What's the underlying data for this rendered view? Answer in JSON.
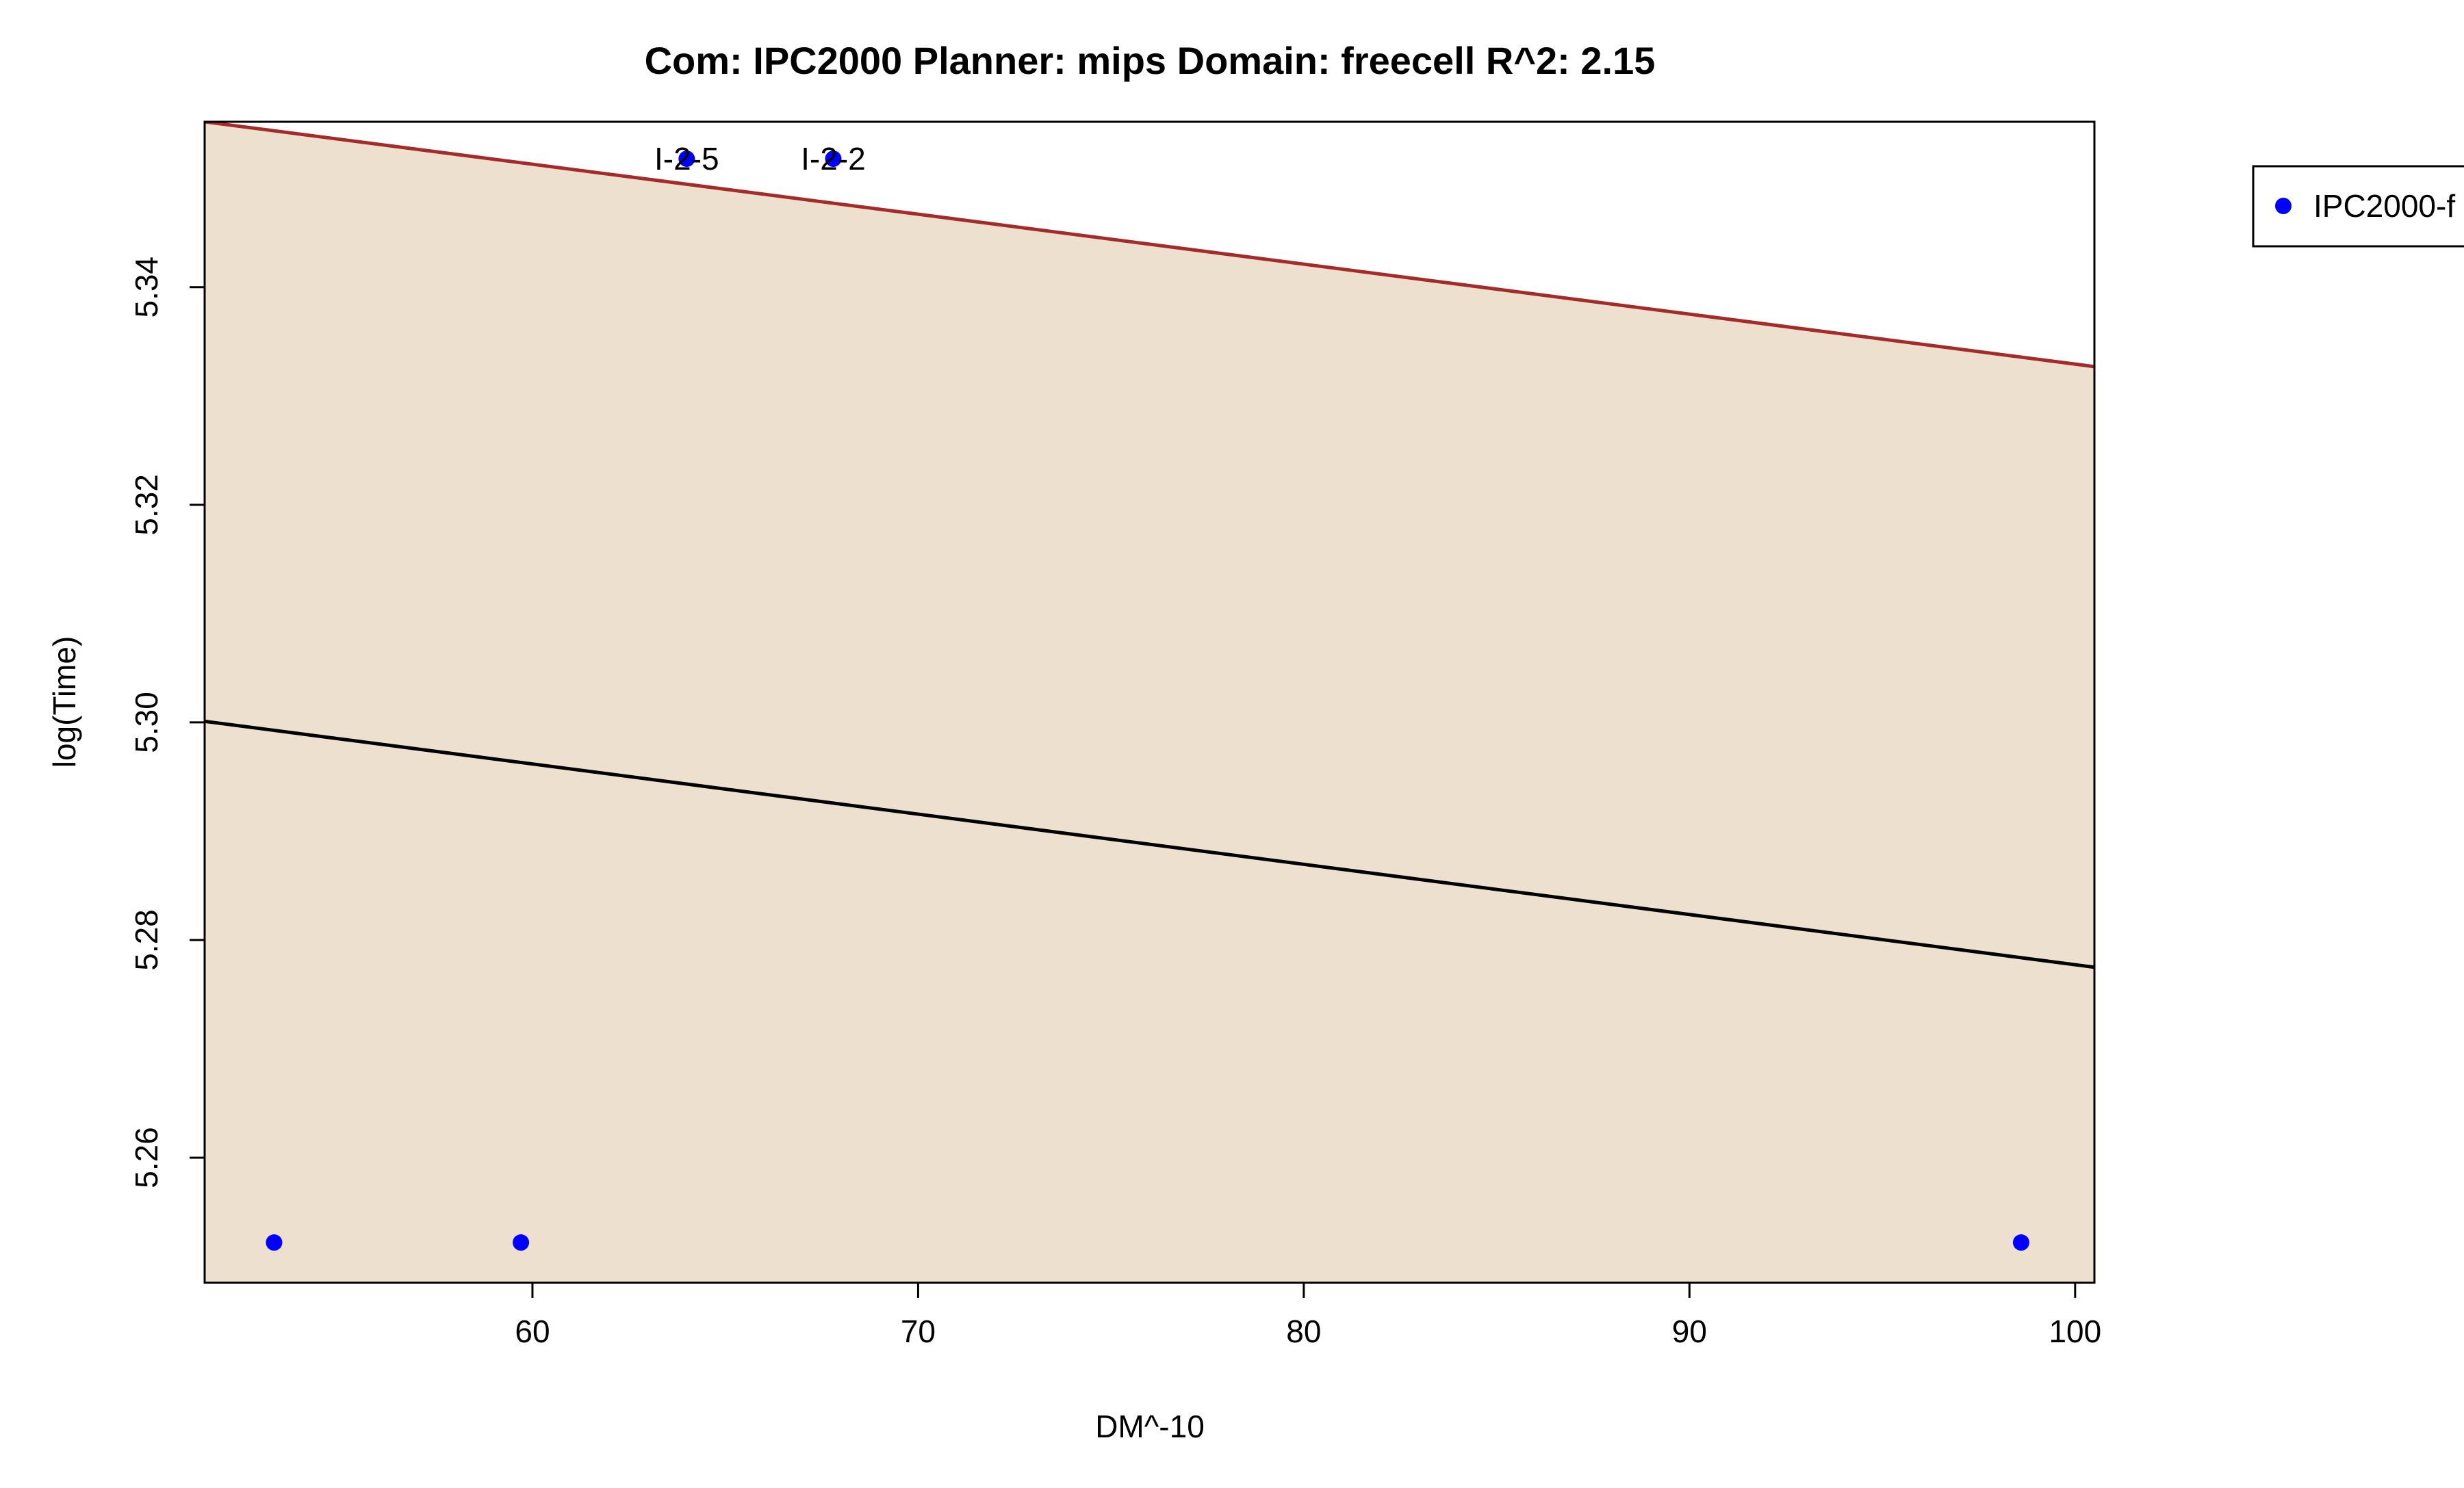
{
  "chart_data": {
    "type": "scatter",
    "title": "Com: IPC2000 Planner: mips Domain: freecell R^2: 2.15",
    "xlabel": "DM^-10",
    "ylabel": "log(Time)",
    "xlim": [
      51.5,
      100.5
    ],
    "ylim": [
      5.2485,
      5.3552
    ],
    "x_ticks": [
      60,
      70,
      80,
      90,
      100
    ],
    "x_tick_labels": [
      "60",
      "70",
      "80",
      "90",
      "100"
    ],
    "y_ticks": [
      5.26,
      5.28,
      5.3,
      5.32,
      5.34
    ],
    "y_tick_labels": [
      "5.26",
      "5.28",
      "5.30",
      "5.32",
      "5.34"
    ],
    "series": [
      {
        "name": "IPC2000-f",
        "color": "#0000ff",
        "points": [
          {
            "x": 53.3,
            "y": 5.2522,
            "label": ""
          },
          {
            "x": 59.7,
            "y": 5.2522,
            "label": ""
          },
          {
            "x": 64.0,
            "y": 5.3518,
            "label": "I-2-5"
          },
          {
            "x": 67.8,
            "y": 5.3518,
            "label": "I-2-2"
          },
          {
            "x": 98.6,
            "y": 5.2522,
            "label": ""
          }
        ]
      }
    ],
    "fit_line": {
      "x": [
        51.5,
        100.5
      ],
      "y": [
        5.3001,
        5.2775
      ],
      "color": "#000000"
    },
    "upper_band": {
      "x": [
        51.5,
        100.5
      ],
      "y": [
        5.3552,
        5.3327
      ],
      "color": "#a52a2a"
    },
    "band_fill_color": "#ede0cf",
    "legend": {
      "placement": "top-right",
      "entries": [
        "IPC2000-f"
      ]
    },
    "grid": false
  }
}
